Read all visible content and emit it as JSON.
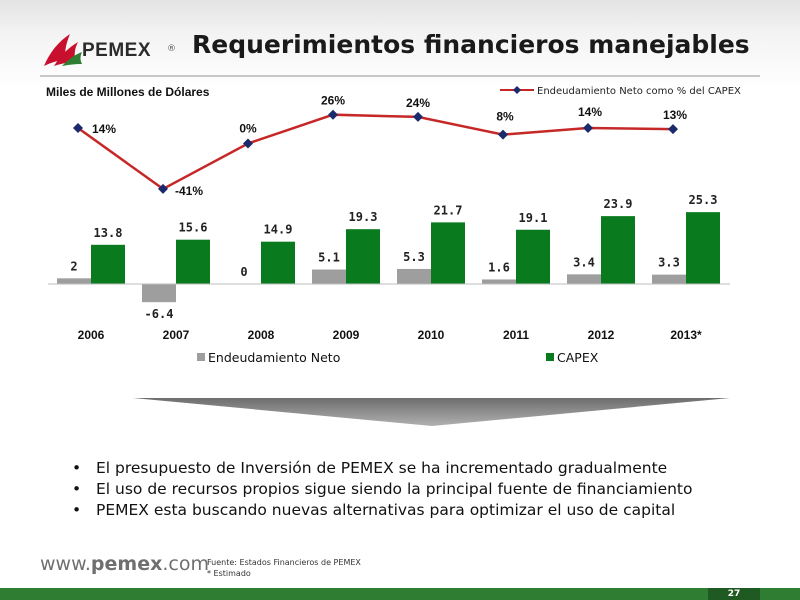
{
  "header": {
    "logo_text": "PEMEX",
    "logo_reg": "®",
    "title": "Requerimientos financieros manejables"
  },
  "chart_data": {
    "type": "bar",
    "units_label": "Miles de Millones de Dólares",
    "categories": [
      "2006",
      "2007",
      "2008",
      "2009",
      "2010",
      "2011",
      "2012",
      "2013*"
    ],
    "series": [
      {
        "name": "Endeudamiento Neto",
        "values": [
          2,
          -6.4,
          0,
          5.1,
          5.3,
          1.6,
          3.4,
          3.3
        ],
        "labels": [
          "2",
          "-6.4",
          "0",
          "5.1",
          "5.3",
          "1.6",
          "3.4",
          "3.3"
        ],
        "color": "#9e9e9e"
      },
      {
        "name": "CAPEX",
        "values": [
          13.8,
          15.6,
          14.9,
          19.3,
          21.7,
          19.1,
          23.9,
          25.3
        ],
        "labels": [
          "13.8",
          "15.6",
          "14.9",
          "19.3",
          "21.7",
          "19.1",
          "23.9",
          "25.3"
        ],
        "color": "#0a7a1e"
      }
    ],
    "line_series": {
      "name": "Endeudamiento Neto como % del CAPEX",
      "values": [
        14,
        -41,
        0,
        26,
        24,
        8,
        14,
        13
      ],
      "labels": [
        "14%",
        "-41%",
        "0%",
        "26%",
        "24%",
        "8%",
        "14%",
        "13%"
      ],
      "line_color": "#c62828",
      "marker_color": "#1a2a6c"
    },
    "legend_position": "bottom",
    "line_legend_position": "top-right",
    "grid": false
  },
  "bullets": [
    "El presupuesto de Inversión de PEMEX se ha incrementado gradualmente",
    "El uso de recursos propios sigue siendo la principal fuente de financiamiento",
    "PEMEX esta buscando nuevas alternativas para optimizar el uso de capital"
  ],
  "bullet_symbol": "•",
  "footer": {
    "url_prefix": "www.",
    "url_brand": "pemex",
    "url_suffix": ".com",
    "source": "Fuente: Estados Financieros de PEMEX",
    "note": "* Estimado"
  },
  "page_number": "27",
  "colors": {
    "brand_red": "#c8102e",
    "brand_green": "#2e7d32",
    "arrow_gray": "#8a8a8a"
  }
}
